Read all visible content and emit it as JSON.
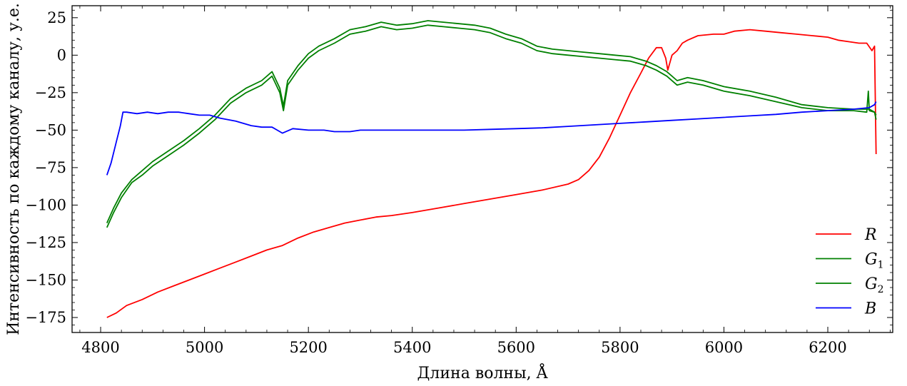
{
  "chart_data": {
    "type": "line",
    "title": "",
    "xlabel": "Длина волны,  Å",
    "ylabel": "Интенсивность по каждому каналу, у.е.",
    "xlim": [
      4745,
      6325
    ],
    "ylim": [
      -185,
      33
    ],
    "grid": false,
    "legend_position": "bottom-right",
    "x_ticks": [
      4800,
      5000,
      5200,
      5400,
      5600,
      5800,
      6000,
      6200
    ],
    "y_ticks": [
      25,
      0,
      -25,
      -50,
      -75,
      -100,
      -125,
      -150,
      -175
    ],
    "x_tick_labels": [
      "4800",
      "5000",
      "5200",
      "5400",
      "5600",
      "5800",
      "6000",
      "6200"
    ],
    "y_tick_labels": [
      "25",
      "0",
      "−25",
      "−50",
      "−75",
      "−100",
      "−125",
      "−150",
      "−175"
    ],
    "series": [
      {
        "name": "R",
        "legend_main": "R",
        "legend_sub": "",
        "color": "#ff0000",
        "x": [
          4812,
          4830,
          4850,
          4880,
          4910,
          4940,
          4970,
          5000,
          5030,
          5060,
          5090,
          5120,
          5150,
          5180,
          5210,
          5240,
          5270,
          5300,
          5330,
          5360,
          5400,
          5450,
          5500,
          5550,
          5600,
          5650,
          5700,
          5720,
          5740,
          5760,
          5780,
          5800,
          5820,
          5840,
          5855,
          5870,
          5880,
          5888,
          5892,
          5900,
          5910,
          5920,
          5930,
          5950,
          5980,
          6000,
          6020,
          6050,
          6080,
          6110,
          6140,
          6170,
          6200,
          6220,
          6240,
          6260,
          6275,
          6285,
          6290,
          6293
        ],
        "y": [
          -175,
          -172,
          -167,
          -163,
          -158,
          -154,
          -150,
          -146,
          -142,
          -138,
          -134,
          -130,
          -127,
          -122,
          -118,
          -115,
          -112,
          -110,
          -108,
          -107,
          -105,
          -102,
          -99,
          -96,
          -93,
          -90,
          -86,
          -83,
          -77,
          -68,
          -55,
          -40,
          -25,
          -12,
          -2,
          5,
          5,
          -2,
          -10,
          0,
          3,
          8,
          10,
          13,
          14,
          14,
          16,
          17,
          16,
          15,
          14,
          13,
          12,
          10,
          9,
          8,
          8,
          3,
          6,
          -66
        ]
      },
      {
        "name": "G1",
        "legend_main": "G",
        "legend_sub": "1",
        "color": "#008000",
        "x": [
          4812,
          4825,
          4840,
          4860,
          4880,
          4900,
          4930,
          4960,
          4990,
          5020,
          5050,
          5080,
          5110,
          5130,
          5145,
          5152,
          5160,
          5180,
          5200,
          5220,
          5250,
          5280,
          5310,
          5340,
          5370,
          5400,
          5430,
          5460,
          5490,
          5520,
          5550,
          5580,
          5610,
          5640,
          5670,
          5700,
          5730,
          5760,
          5790,
          5820,
          5850,
          5870,
          5890,
          5910,
          5930,
          5960,
          6000,
          6050,
          6100,
          6150,
          6200,
          6250,
          6275,
          6278,
          6280,
          6290,
          6293
        ],
        "y": [
          -115,
          -105,
          -95,
          -85,
          -80,
          -74,
          -67,
          -60,
          -52,
          -43,
          -32,
          -25,
          -20,
          -14,
          -25,
          -37,
          -20,
          -10,
          -2,
          3,
          8,
          14,
          16,
          19,
          17,
          18,
          20,
          19,
          18,
          17,
          15,
          11,
          8,
          3,
          1,
          0,
          -1,
          -2,
          -3,
          -4,
          -7,
          -10,
          -14,
          -20,
          -18,
          -20,
          -24,
          -27,
          -31,
          -35,
          -37,
          -37,
          -38,
          -24,
          -37,
          -38,
          -40
        ]
      },
      {
        "name": "G2",
        "legend_main": "G",
        "legend_sub": "2",
        "color": "#008000",
        "x": [
          4812,
          4825,
          4840,
          4860,
          4880,
          4900,
          4930,
          4960,
          4990,
          5020,
          5050,
          5080,
          5110,
          5130,
          5145,
          5152,
          5160,
          5180,
          5200,
          5220,
          5250,
          5280,
          5310,
          5340,
          5370,
          5400,
          5430,
          5460,
          5490,
          5520,
          5550,
          5580,
          5610,
          5640,
          5670,
          5700,
          5730,
          5760,
          5790,
          5820,
          5850,
          5870,
          5890,
          5910,
          5930,
          5960,
          6000,
          6050,
          6100,
          6150,
          6200,
          6250,
          6280,
          6290,
          6293
        ],
        "y": [
          -112,
          -102,
          -92,
          -83,
          -77,
          -71,
          -64,
          -57,
          -49,
          -40,
          -29,
          -22,
          -17,
          -11,
          -22,
          -34,
          -17,
          -7,
          1,
          6,
          11,
          17,
          19,
          22,
          20,
          21,
          23,
          22,
          21,
          20,
          18,
          14,
          11,
          6,
          4,
          3,
          2,
          1,
          0,
          -1,
          -4,
          -7,
          -11,
          -17,
          -15,
          -17,
          -21,
          -24,
          -28,
          -33,
          -35,
          -36,
          -36,
          -38,
          -43
        ]
      },
      {
        "name": "B",
        "legend_main": "B",
        "legend_sub": "",
        "color": "#0000ff",
        "x": [
          4812,
          4820,
          4830,
          4838,
          4843,
          4850,
          4870,
          4890,
          4910,
          4930,
          4950,
          4970,
          4990,
          5010,
          5030,
          5060,
          5090,
          5110,
          5130,
          5140,
          5150,
          5170,
          5200,
          5230,
          5250,
          5280,
          5300,
          5350,
          5400,
          5450,
          5500,
          5550,
          5600,
          5650,
          5700,
          5750,
          5800,
          5850,
          5900,
          5950,
          6000,
          6050,
          6100,
          6150,
          6200,
          6250,
          6280,
          6290,
          6293
        ],
        "y": [
          -80,
          -72,
          -58,
          -47,
          -38,
          -38,
          -39,
          -38,
          -39,
          -38,
          -38,
          -39,
          -40,
          -40,
          -42,
          -44,
          -47,
          -48,
          -48,
          -50,
          -52,
          -49,
          -50,
          -50,
          -51,
          -51,
          -50,
          -50,
          -50,
          -50,
          -50,
          -49.5,
          -49,
          -48.5,
          -47.5,
          -46.5,
          -45.5,
          -44.5,
          -43.5,
          -42.5,
          -41.5,
          -40.5,
          -39.5,
          -38,
          -37,
          -36,
          -35,
          -33,
          -31
        ]
      }
    ]
  }
}
